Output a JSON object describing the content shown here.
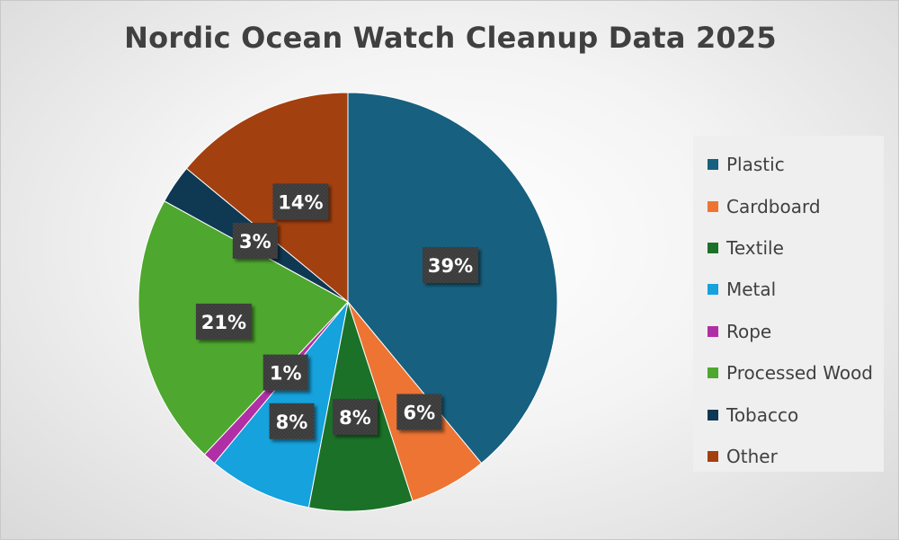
{
  "chart_data": {
    "type": "pie",
    "title": "Nordic Ocean Watch Cleanup Data 2025",
    "slices": [
      {
        "label": "Plastic",
        "value": 39,
        "display": "39%",
        "color": "#17607f"
      },
      {
        "label": "Cardboard",
        "value": 6,
        "display": "6%",
        "color": "#ed7433"
      },
      {
        "label": "Textile",
        "value": 8,
        "display": "8%",
        "color": "#1b7128"
      },
      {
        "label": "Metal",
        "value": 8,
        "display": "8%",
        "color": "#15a2dd"
      },
      {
        "label": "Rope",
        "value": 1,
        "display": "1%",
        "color": "#b12fa5"
      },
      {
        "label": "Processed Wood",
        "value": 21,
        "display": "21%",
        "color": "#4ea72e"
      },
      {
        "label": "Tobacco",
        "value": 3,
        "display": "3%",
        "color": "#0f3853"
      },
      {
        "label": "Other",
        "value": 14,
        "display": "14%",
        "color": "#a3400f"
      }
    ],
    "legend_position": "right"
  }
}
